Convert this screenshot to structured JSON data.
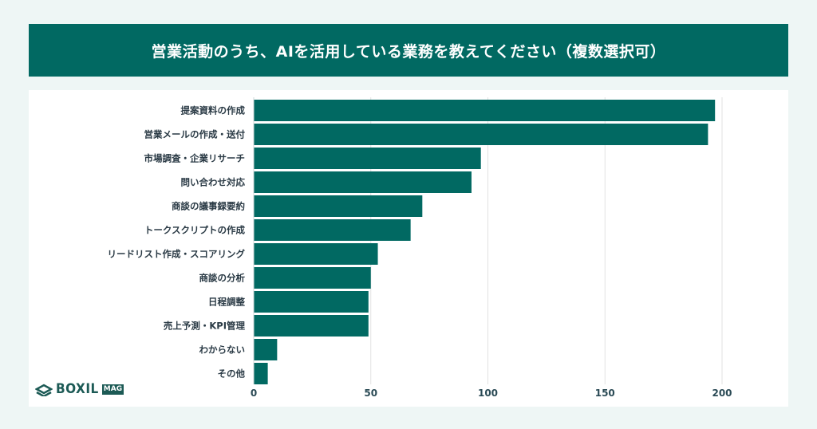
{
  "chart_data": {
    "type": "bar",
    "orientation": "horizontal",
    "title": "営業活動のうち、AIを活用している業務を教えてください（複数選択可）",
    "categories": [
      "提案資料の作成",
      "営業メールの作成・送付",
      "市場調査・企業リサーチ",
      "問い合わせ対応",
      "商談の議事録要約",
      "トークスクリプトの作成",
      "リードリスト作成・スコアリング",
      "商談の分析",
      "日程調整",
      "売上予測・KPI管理",
      "わからない",
      "その他"
    ],
    "values": [
      197,
      194,
      97,
      93,
      72,
      67,
      53,
      50,
      49,
      49,
      10,
      6
    ],
    "xlim": [
      0,
      220
    ],
    "xticks": [
      "0",
      "50",
      "100",
      "150",
      "200"
    ],
    "xlabel": "",
    "ylabel": "",
    "grid": "vertical",
    "bar_color": "#016962"
  },
  "logo": {
    "text": "BOXIL",
    "badge": "MAG"
  }
}
